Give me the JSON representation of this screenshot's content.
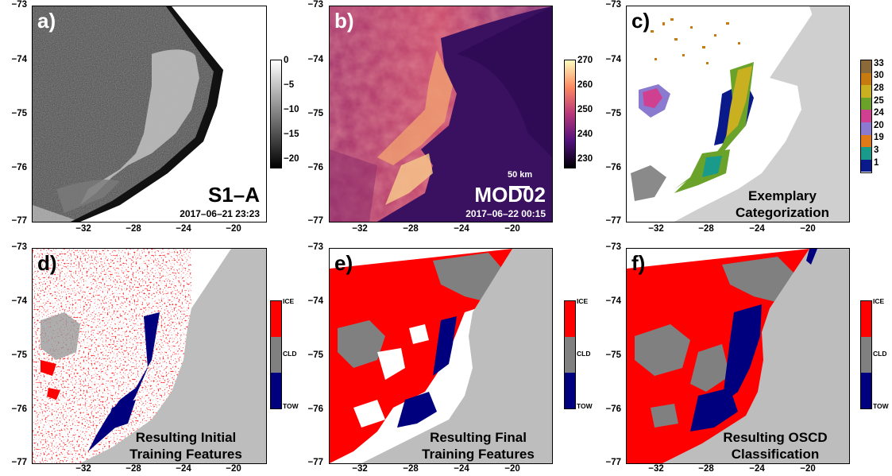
{
  "panels": [
    {
      "letter": "a)",
      "sensor": "S1–A",
      "date": "2017–06–21 23:23",
      "colorbar_ticks": [
        "0",
        "−5",
        "−10",
        "−15",
        "−20"
      ],
      "colormap": "grayscale"
    },
    {
      "letter": "b)",
      "sensor": "MOD02",
      "date": "2017–06–22 00:15",
      "scale_bar": "50 km",
      "colorbar_ticks": [
        "270",
        "260",
        "250",
        "240",
        "230"
      ],
      "colormap": "magma"
    },
    {
      "letter": "c)",
      "caption": [
        "Exemplary",
        "Categorization"
      ],
      "colorbar_ticks": [
        "33",
        "30",
        "28",
        "25",
        "24",
        "20",
        "19",
        "3",
        "1"
      ],
      "colors": [
        "#8a6a3a",
        "#c77a10",
        "#c9b020",
        "#6aa22a",
        "#d04090",
        "#8a7ad0",
        "#e07a18",
        "#1a9a8a",
        "#0a1a8a"
      ]
    },
    {
      "letter": "d)",
      "caption": [
        "Resulting Initial",
        "Training Features"
      ],
      "colorbar_ticks": [
        "ICE",
        "CLD",
        "TOW"
      ]
    },
    {
      "letter": "e)",
      "caption": [
        "Resulting Final",
        "Training Features"
      ],
      "colorbar_ticks": [
        "ICE",
        "CLD",
        "TOW"
      ]
    },
    {
      "letter": "f)",
      "caption": [
        "Resulting OSCD",
        "Classification"
      ],
      "colorbar_ticks": [
        "ICE",
        "CLD",
        "TOW"
      ]
    }
  ],
  "axes": {
    "y_ticks": [
      "−73",
      "−74",
      "−75",
      "−76",
      "−77"
    ],
    "x_ticks": [
      "−32",
      "−28",
      "−24",
      "−20"
    ]
  },
  "class_colors": {
    "ICE": "#ff0000",
    "CLD": "#808080",
    "TOW": "#00007f",
    "land": "#bdbdbd"
  }
}
